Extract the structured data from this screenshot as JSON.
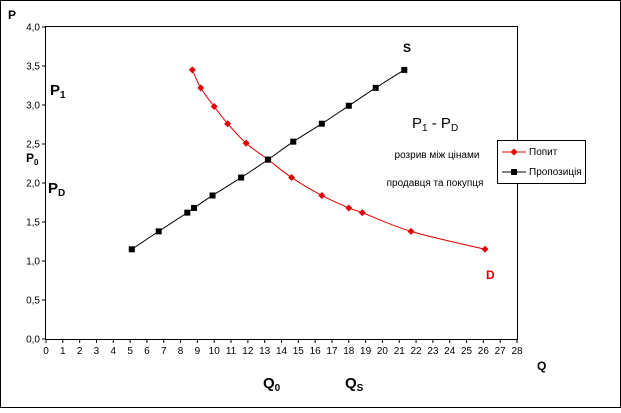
{
  "chart_data": {
    "type": "line",
    "xlabel": "Q",
    "ylabel": "P",
    "xlim": [
      0,
      28
    ],
    "ylim": [
      0,
      4
    ],
    "x_ticks": [
      "0",
      "1",
      "2",
      "3",
      "4",
      "5",
      "6",
      "7",
      "8",
      "9",
      "10",
      "11",
      "12",
      "13",
      "14",
      "15",
      "16",
      "17",
      "18",
      "19",
      "20",
      "21",
      "22",
      "23",
      "24",
      "25",
      "26",
      "27",
      "28"
    ],
    "y_ticks": [
      "0,0",
      "0,5",
      "1,0",
      "1,5",
      "2,0",
      "2,5",
      "3,0",
      "3,5",
      "4,0"
    ],
    "grid": false,
    "legend_position": "right",
    "series": [
      {
        "name": "Попит",
        "color": "#e00000",
        "marker": "diamond",
        "x": [
          8.7,
          9.2,
          10.0,
          10.8,
          11.9,
          13.2,
          14.6,
          16.4,
          18.0,
          18.8,
          21.7,
          26.1
        ],
        "y": [
          3.45,
          3.22,
          2.98,
          2.76,
          2.51,
          2.3,
          2.07,
          1.84,
          1.68,
          1.62,
          1.38,
          1.15
        ]
      },
      {
        "name": "Пропозиція",
        "color": "#000000",
        "marker": "square",
        "x": [
          5.1,
          6.7,
          8.4,
          8.8,
          9.9,
          11.6,
          13.2,
          14.7,
          16.4,
          18.0,
          19.6,
          21.3
        ],
        "y": [
          1.15,
          1.38,
          1.62,
          1.68,
          1.84,
          2.07,
          2.3,
          2.53,
          2.76,
          2.99,
          3.22,
          3.45
        ]
      }
    ],
    "annotations": {
      "supply_label": "S",
      "demand_label": "D",
      "p1": "P",
      "p1_sub": "1",
      "p0": "P",
      "p0_sub": "0",
      "pd": "P",
      "pd_sub": "D",
      "q0": "Q",
      "q0_sub": "0",
      "qs": "Q",
      "qs_sub": "S",
      "gap_a": "P",
      "gap_a_sub": "1",
      "gap_dash": " - ",
      "gap_b": "P",
      "gap_b_sub": "D",
      "gap_line1": "розрив між цінами",
      "gap_line2": "продавця та покупця"
    }
  }
}
